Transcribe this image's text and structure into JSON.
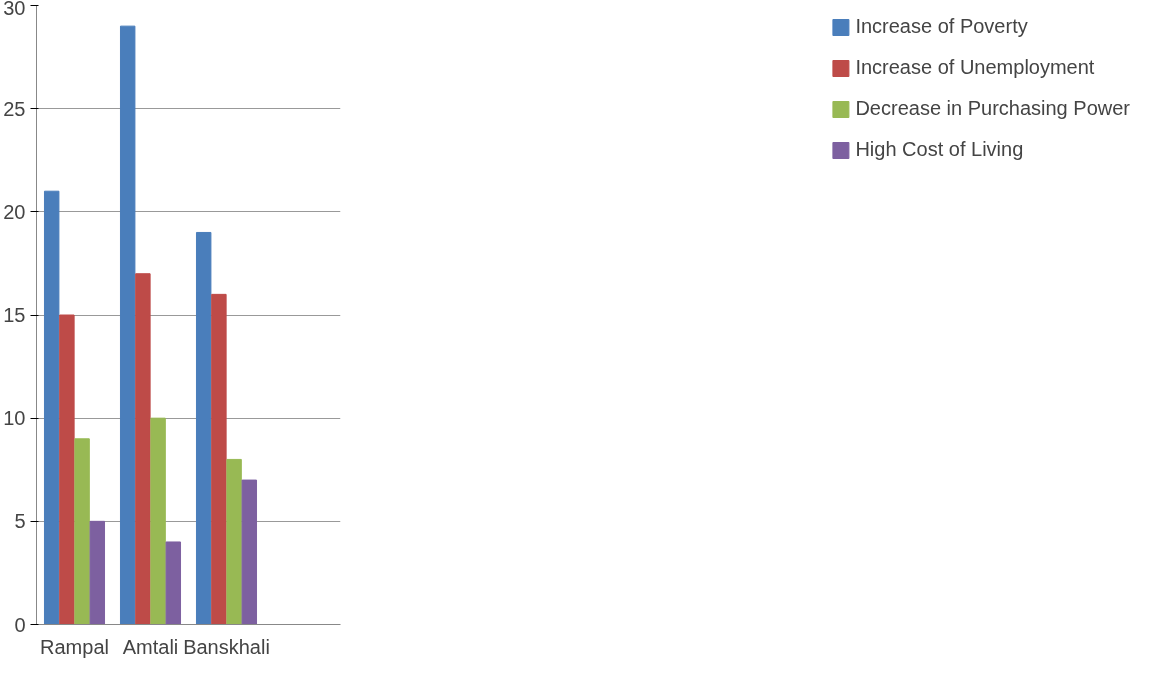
{
  "chart_data": {
    "type": "bar",
    "categories": [
      "Rampal",
      "Amtali",
      "Banskhali",
      null
    ],
    "series": [
      {
        "name": "Increase of Poverty",
        "color": "#4a7ebb",
        "values": [
          21,
          29,
          19,
          null
        ]
      },
      {
        "name": "Increase of Unemployment",
        "color": "#be4b48",
        "values": [
          15,
          17,
          16,
          null
        ]
      },
      {
        "name": "Decrease in Purchasing Power",
        "color": "#98b954",
        "values": [
          9,
          10,
          8,
          null
        ]
      },
      {
        "name": "High Cost of Living",
        "color": "#7d60a0",
        "values": [
          5,
          4,
          7,
          null
        ]
      }
    ],
    "ylim": [
      0,
      30
    ],
    "yticks": [
      0,
      5,
      10,
      15,
      20,
      25,
      30
    ],
    "grid": "y",
    "legend": "right"
  }
}
